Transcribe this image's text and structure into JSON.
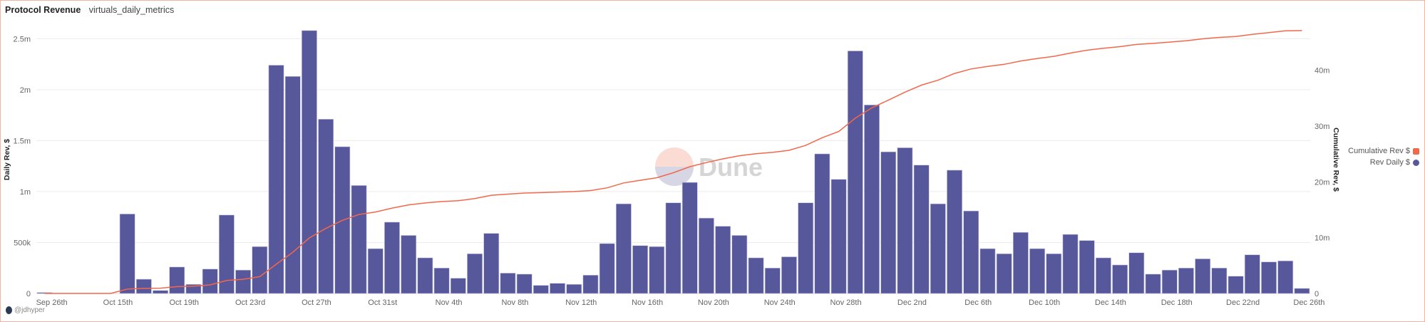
{
  "header": {
    "title": "Protocol Revenue",
    "subtitle": "virtuals_daily_metrics"
  },
  "footer": {
    "author": "@jdhyper"
  },
  "watermark": {
    "text": "Dune"
  },
  "colors": {
    "bar": "#57579b",
    "line": "#f2684b",
    "grid": "#ececec"
  },
  "chart_data": {
    "type": "bar+line",
    "title": "Protocol Revenue",
    "ylabel": "Daily Rev, $",
    "y2label": "Cumulative Rev, $",
    "ylim": [
      0,
      2600000
    ],
    "y2lim": [
      0,
      47500000
    ],
    "yticks": [
      {
        "v": 0,
        "label": "0"
      },
      {
        "v": 500000,
        "label": "500k"
      },
      {
        "v": 1000000,
        "label": "1m"
      },
      {
        "v": 1500000,
        "label": "1.5m"
      },
      {
        "v": 2000000,
        "label": "2m"
      },
      {
        "v": 2500000,
        "label": "2.5m"
      }
    ],
    "y2ticks": [
      {
        "v": 0,
        "label": "0"
      },
      {
        "v": 10000000,
        "label": "10m"
      },
      {
        "v": 20000000,
        "label": "20m"
      },
      {
        "v": 30000000,
        "label": "30m"
      },
      {
        "v": 40000000,
        "label": "40m"
      }
    ],
    "legend": {
      "position": "right",
      "items": [
        {
          "name": "Cumulative Rev $",
          "color": "#f2684b"
        },
        {
          "name": "Rev Daily $",
          "color": "#57579b"
        }
      ]
    },
    "categories": [
      "Sep 26th",
      "Oct 12th",
      "Oct 13th",
      "Oct 14th",
      "Oct 15th",
      "Oct 16th",
      "Oct 17th",
      "Oct 18th",
      "Oct 19th",
      "Oct 20th",
      "Oct 21st",
      "Oct 22nd",
      "Oct 23rd",
      "Oct 24th",
      "Oct 25th",
      "Oct 26th",
      "Oct 27th",
      "Oct 28th",
      "Oct 29th",
      "Oct 30th",
      "Oct 31st",
      "Nov 1st",
      "Nov 2nd",
      "Nov 3rd",
      "Nov 4th",
      "Nov 5th",
      "Nov 6th",
      "Nov 7th",
      "Nov 8th",
      "Nov 9th",
      "Nov 10th",
      "Nov 11th",
      "Nov 12th",
      "Nov 13th",
      "Nov 14th",
      "Nov 15th",
      "Nov 16th",
      "Nov 17th",
      "Nov 18th",
      "Nov 19th",
      "Nov 20th",
      "Nov 21st",
      "Nov 22nd",
      "Nov 23rd",
      "Nov 24th",
      "Nov 25th",
      "Nov 26th",
      "Nov 27th",
      "Nov 28th",
      "Nov 29th",
      "Nov 30th",
      "Dec 1st",
      "Dec 2nd",
      "Dec 3rd",
      "Dec 4th",
      "Dec 5th",
      "Dec 6th",
      "Dec 7th",
      "Dec 8th",
      "Dec 9th",
      "Dec 10th",
      "Dec 11th",
      "Dec 12th",
      "Dec 13th",
      "Dec 14th",
      "Dec 15th",
      "Dec 16th",
      "Dec 17th",
      "Dec 18th",
      "Dec 19th",
      "Dec 20th",
      "Dec 21st",
      "Dec 22nd",
      "Dec 23rd",
      "Dec 24th",
      "Dec 25th",
      "Dec 26th"
    ],
    "xtick_every": 4,
    "series": [
      {
        "name": "Rev Daily $",
        "type": "bar",
        "values": [
          10000,
          0,
          0,
          0,
          0,
          780000,
          140000,
          30000,
          260000,
          90000,
          240000,
          770000,
          230000,
          460000,
          2240000,
          2130000,
          2580000,
          1710000,
          1440000,
          1060000,
          440000,
          700000,
          570000,
          350000,
          250000,
          150000,
          390000,
          590000,
          200000,
          190000,
          80000,
          100000,
          90000,
          180000,
          490000,
          880000,
          470000,
          460000,
          890000,
          1090000,
          740000,
          660000,
          570000,
          350000,
          250000,
          360000,
          890000,
          1370000,
          1120000,
          2380000,
          1850000,
          1390000,
          1430000,
          1260000,
          880000,
          1210000,
          810000,
          440000,
          390000,
          600000,
          440000,
          390000,
          580000,
          520000,
          350000,
          280000,
          400000,
          190000,
          230000,
          250000,
          340000,
          250000,
          170000,
          380000,
          310000,
          320000,
          50000
        ]
      },
      {
        "name": "Cumulative Rev $",
        "type": "line",
        "derived_from": "Rev Daily $ (running sum)"
      }
    ]
  }
}
